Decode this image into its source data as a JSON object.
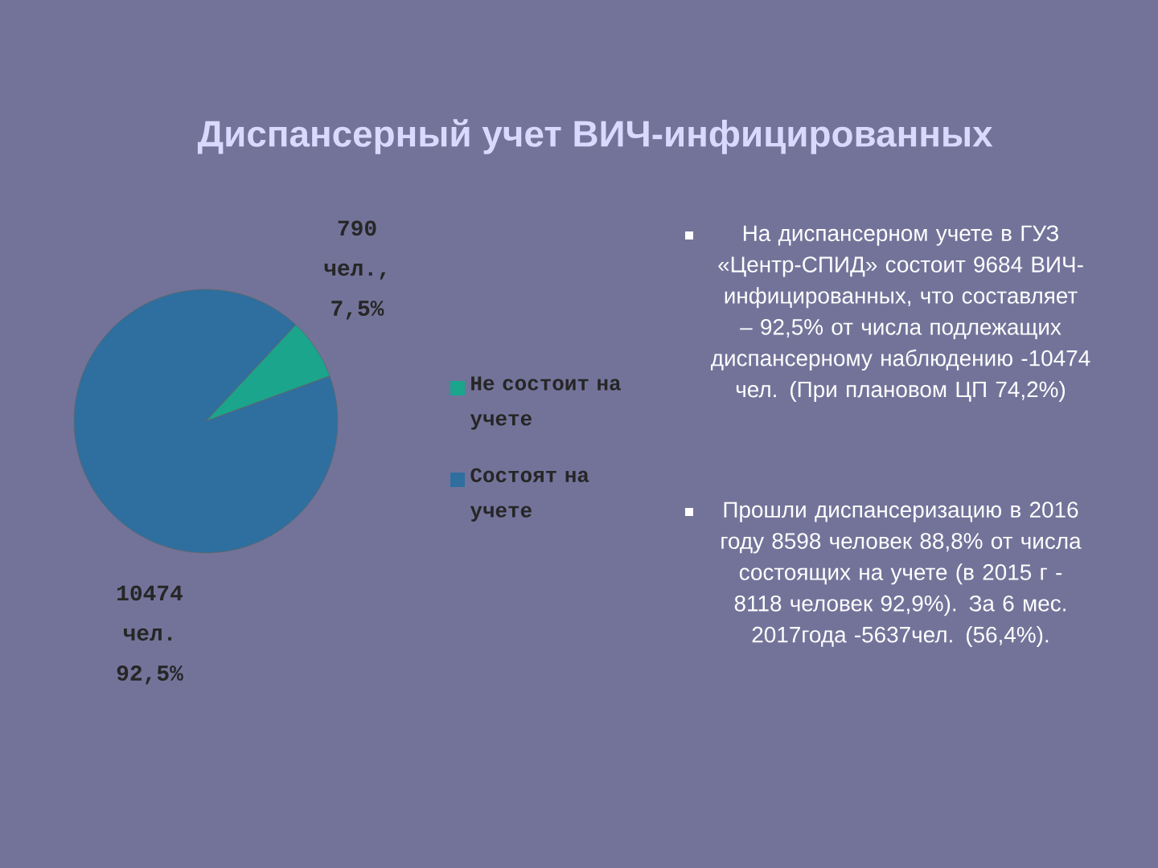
{
  "chart_data": {
    "type": "pie",
    "title": "Диспансерный учет ВИЧ-инфицированных",
    "categories": [
      "Не состоит на учете",
      "Состоят на учете"
    ],
    "values": [
      7.5,
      92.5
    ],
    "colors": [
      "#1aa58c",
      "#2f6f9f"
    ],
    "value_labels": [
      "790 чел., 7,5%",
      "10474 чел. 92,5%"
    ],
    "legend": "right",
    "annotations": [
      "На диспансерном учете в ГУЗ «Центр-СПИД» состоит 9684 ВИЧ-инфицированных, что составляет – 92,5% от числа подлежащих диспансерному наблюдению -10474 чел. (При плановом ЦП 74,2%)",
      "Прошли диспансеризацию в 2016 году 8598 человек 88,8% от числа состоящих на учете (в 2015 г - 8118 человек 92,9%). За 6 мес. 2017года -5637чел. (56,4%)."
    ]
  }
}
